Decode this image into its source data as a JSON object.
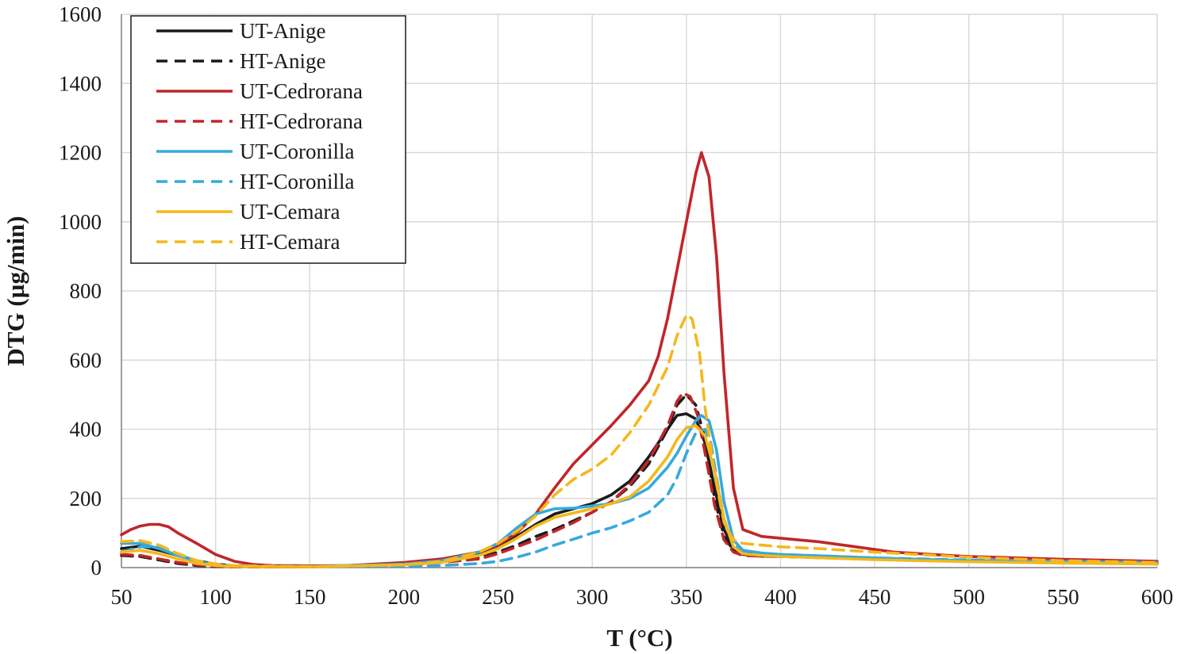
{
  "chart_data": {
    "type": "line",
    "xlabel": "T (°C)",
    "ylabel": "DTG (µg/min)",
    "xlim": [
      50,
      600
    ],
    "ylim": [
      0,
      1600
    ],
    "xticks": [
      "50",
      "100",
      "150",
      "200",
      "250",
      "300",
      "350",
      "400",
      "450",
      "500",
      "550",
      "600"
    ],
    "yticks": [
      "0",
      "200",
      "400",
      "600",
      "800",
      "1000",
      "1200",
      "1400",
      "1600"
    ],
    "grid": true,
    "legend_position": "top-left",
    "series": [
      {
        "name": "UT-Anige",
        "color": "#1a1a1a",
        "dash": "solid",
        "x": [
          50,
          60,
          70,
          80,
          90,
          100,
          110,
          120,
          150,
          200,
          220,
          240,
          250,
          260,
          270,
          280,
          290,
          300,
          310,
          320,
          330,
          340,
          345,
          350,
          355,
          360,
          365,
          370,
          375,
          380,
          390,
          400,
          450,
          500,
          550,
          600
        ],
        "y": [
          55,
          62,
          50,
          35,
          20,
          10,
          5,
          3,
          2,
          10,
          20,
          40,
          60,
          90,
          125,
          155,
          170,
          185,
          210,
          250,
          320,
          400,
          440,
          445,
          430,
          360,
          230,
          110,
          55,
          40,
          38,
          35,
          25,
          18,
          14,
          12
        ]
      },
      {
        "name": "HT-Anige",
        "color": "#1a1a1a",
        "dash": "dashed",
        "x": [
          50,
          60,
          70,
          80,
          90,
          100,
          110,
          150,
          200,
          220,
          240,
          250,
          260,
          270,
          280,
          290,
          300,
          310,
          320,
          330,
          340,
          345,
          350,
          355,
          360,
          365,
          370,
          375,
          380,
          390,
          400,
          450,
          500,
          550,
          600
        ],
        "y": [
          35,
          32,
          22,
          12,
          6,
          3,
          2,
          2,
          8,
          15,
          28,
          45,
          65,
          90,
          110,
          135,
          160,
          190,
          235,
          300,
          400,
          470,
          500,
          470,
          370,
          200,
          90,
          50,
          38,
          33,
          32,
          24,
          18,
          14,
          12
        ]
      },
      {
        "name": "UT-Cedrorana",
        "color": "#c0262b",
        "dash": "solid",
        "x": [
          50,
          55,
          60,
          65,
          70,
          75,
          80,
          90,
          100,
          110,
          120,
          130,
          150,
          170,
          200,
          220,
          240,
          250,
          260,
          270,
          280,
          290,
          300,
          310,
          320,
          330,
          335,
          340,
          345,
          350,
          355,
          358,
          362,
          366,
          370,
          375,
          380,
          390,
          400,
          420,
          440,
          460,
          480,
          500,
          550,
          600
        ],
        "y": [
          95,
          110,
          120,
          125,
          125,
          118,
          100,
          70,
          38,
          18,
          9,
          6,
          5,
          6,
          15,
          25,
          45,
          65,
          100,
          155,
          230,
          300,
          355,
          410,
          470,
          540,
          610,
          720,
          860,
          1000,
          1140,
          1200,
          1130,
          900,
          560,
          230,
          110,
          90,
          85,
          75,
          60,
          45,
          38,
          32,
          24,
          18
        ]
      },
      {
        "name": "HT-Cedrorana",
        "color": "#c0262b",
        "dash": "dashed",
        "x": [
          50,
          60,
          70,
          80,
          90,
          100,
          110,
          150,
          200,
          220,
          240,
          250,
          260,
          270,
          280,
          290,
          300,
          310,
          320,
          330,
          340,
          345,
          348,
          352,
          356,
          360,
          365,
          370,
          375,
          380,
          390,
          400,
          450,
          500,
          550,
          600
        ],
        "y": [
          38,
          35,
          25,
          15,
          8,
          4,
          2,
          2,
          8,
          15,
          25,
          40,
          60,
          80,
          105,
          130,
          160,
          190,
          240,
          310,
          410,
          480,
          505,
          495,
          440,
          330,
          180,
          80,
          45,
          35,
          33,
          32,
          25,
          19,
          15,
          13
        ]
      },
      {
        "name": "UT-Coronilla",
        "color": "#36a9dd",
        "dash": "solid",
        "x": [
          50,
          60,
          70,
          80,
          90,
          100,
          110,
          150,
          200,
          220,
          240,
          250,
          260,
          270,
          280,
          290,
          300,
          310,
          320,
          330,
          340,
          345,
          350,
          355,
          358,
          362,
          366,
          370,
          375,
          380,
          390,
          400,
          450,
          500,
          550,
          600
        ],
        "y": [
          70,
          70,
          55,
          35,
          18,
          8,
          4,
          3,
          10,
          20,
          45,
          70,
          115,
          155,
          170,
          172,
          178,
          185,
          200,
          230,
          290,
          330,
          380,
          425,
          440,
          425,
          340,
          190,
          80,
          50,
          42,
          38,
          28,
          20,
          15,
          12
        ]
      },
      {
        "name": "HT-Coronilla",
        "color": "#36a9dd",
        "dash": "dashed",
        "x": [
          50,
          60,
          70,
          80,
          90,
          100,
          110,
          150,
          200,
          220,
          240,
          250,
          260,
          270,
          280,
          290,
          300,
          310,
          320,
          330,
          340,
          345,
          350,
          355,
          360,
          363,
          366,
          370,
          375,
          380,
          390,
          400,
          450,
          500,
          550,
          600
        ],
        "y": [
          45,
          60,
          60,
          40,
          20,
          10,
          5,
          3,
          4,
          6,
          12,
          18,
          30,
          45,
          65,
          82,
          100,
          115,
          135,
          160,
          210,
          260,
          330,
          390,
          400,
          360,
          260,
          140,
          70,
          45,
          40,
          38,
          28,
          22,
          18,
          15
        ]
      },
      {
        "name": "UT-Cemara",
        "color": "#f4b81c",
        "dash": "solid",
        "x": [
          50,
          60,
          70,
          80,
          90,
          100,
          110,
          150,
          200,
          220,
          240,
          250,
          260,
          270,
          280,
          290,
          300,
          310,
          320,
          330,
          340,
          345,
          350,
          355,
          360,
          365,
          370,
          375,
          380,
          390,
          400,
          450,
          500,
          550,
          600
        ],
        "y": [
          45,
          50,
          40,
          25,
          12,
          6,
          3,
          2,
          8,
          15,
          35,
          55,
          85,
          120,
          145,
          158,
          170,
          185,
          205,
          250,
          320,
          370,
          405,
          410,
          380,
          280,
          140,
          60,
          40,
          35,
          32,
          23,
          17,
          13,
          10
        ]
      },
      {
        "name": "HT-Cemara",
        "color": "#f4b81c",
        "dash": "dashed",
        "x": [
          50,
          60,
          70,
          80,
          90,
          100,
          110,
          150,
          200,
          220,
          240,
          250,
          260,
          270,
          280,
          290,
          300,
          310,
          320,
          330,
          340,
          345,
          350,
          353,
          357,
          360,
          365,
          370,
          375,
          380,
          390,
          400,
          420,
          450,
          500,
          550,
          600
        ],
        "y": [
          75,
          78,
          65,
          40,
          20,
          10,
          5,
          3,
          8,
          18,
          45,
          70,
          105,
          150,
          210,
          255,
          285,
          325,
          390,
          470,
          580,
          670,
          730,
          720,
          620,
          460,
          270,
          130,
          80,
          70,
          65,
          60,
          55,
          45,
          30,
          20,
          15
        ]
      }
    ]
  }
}
